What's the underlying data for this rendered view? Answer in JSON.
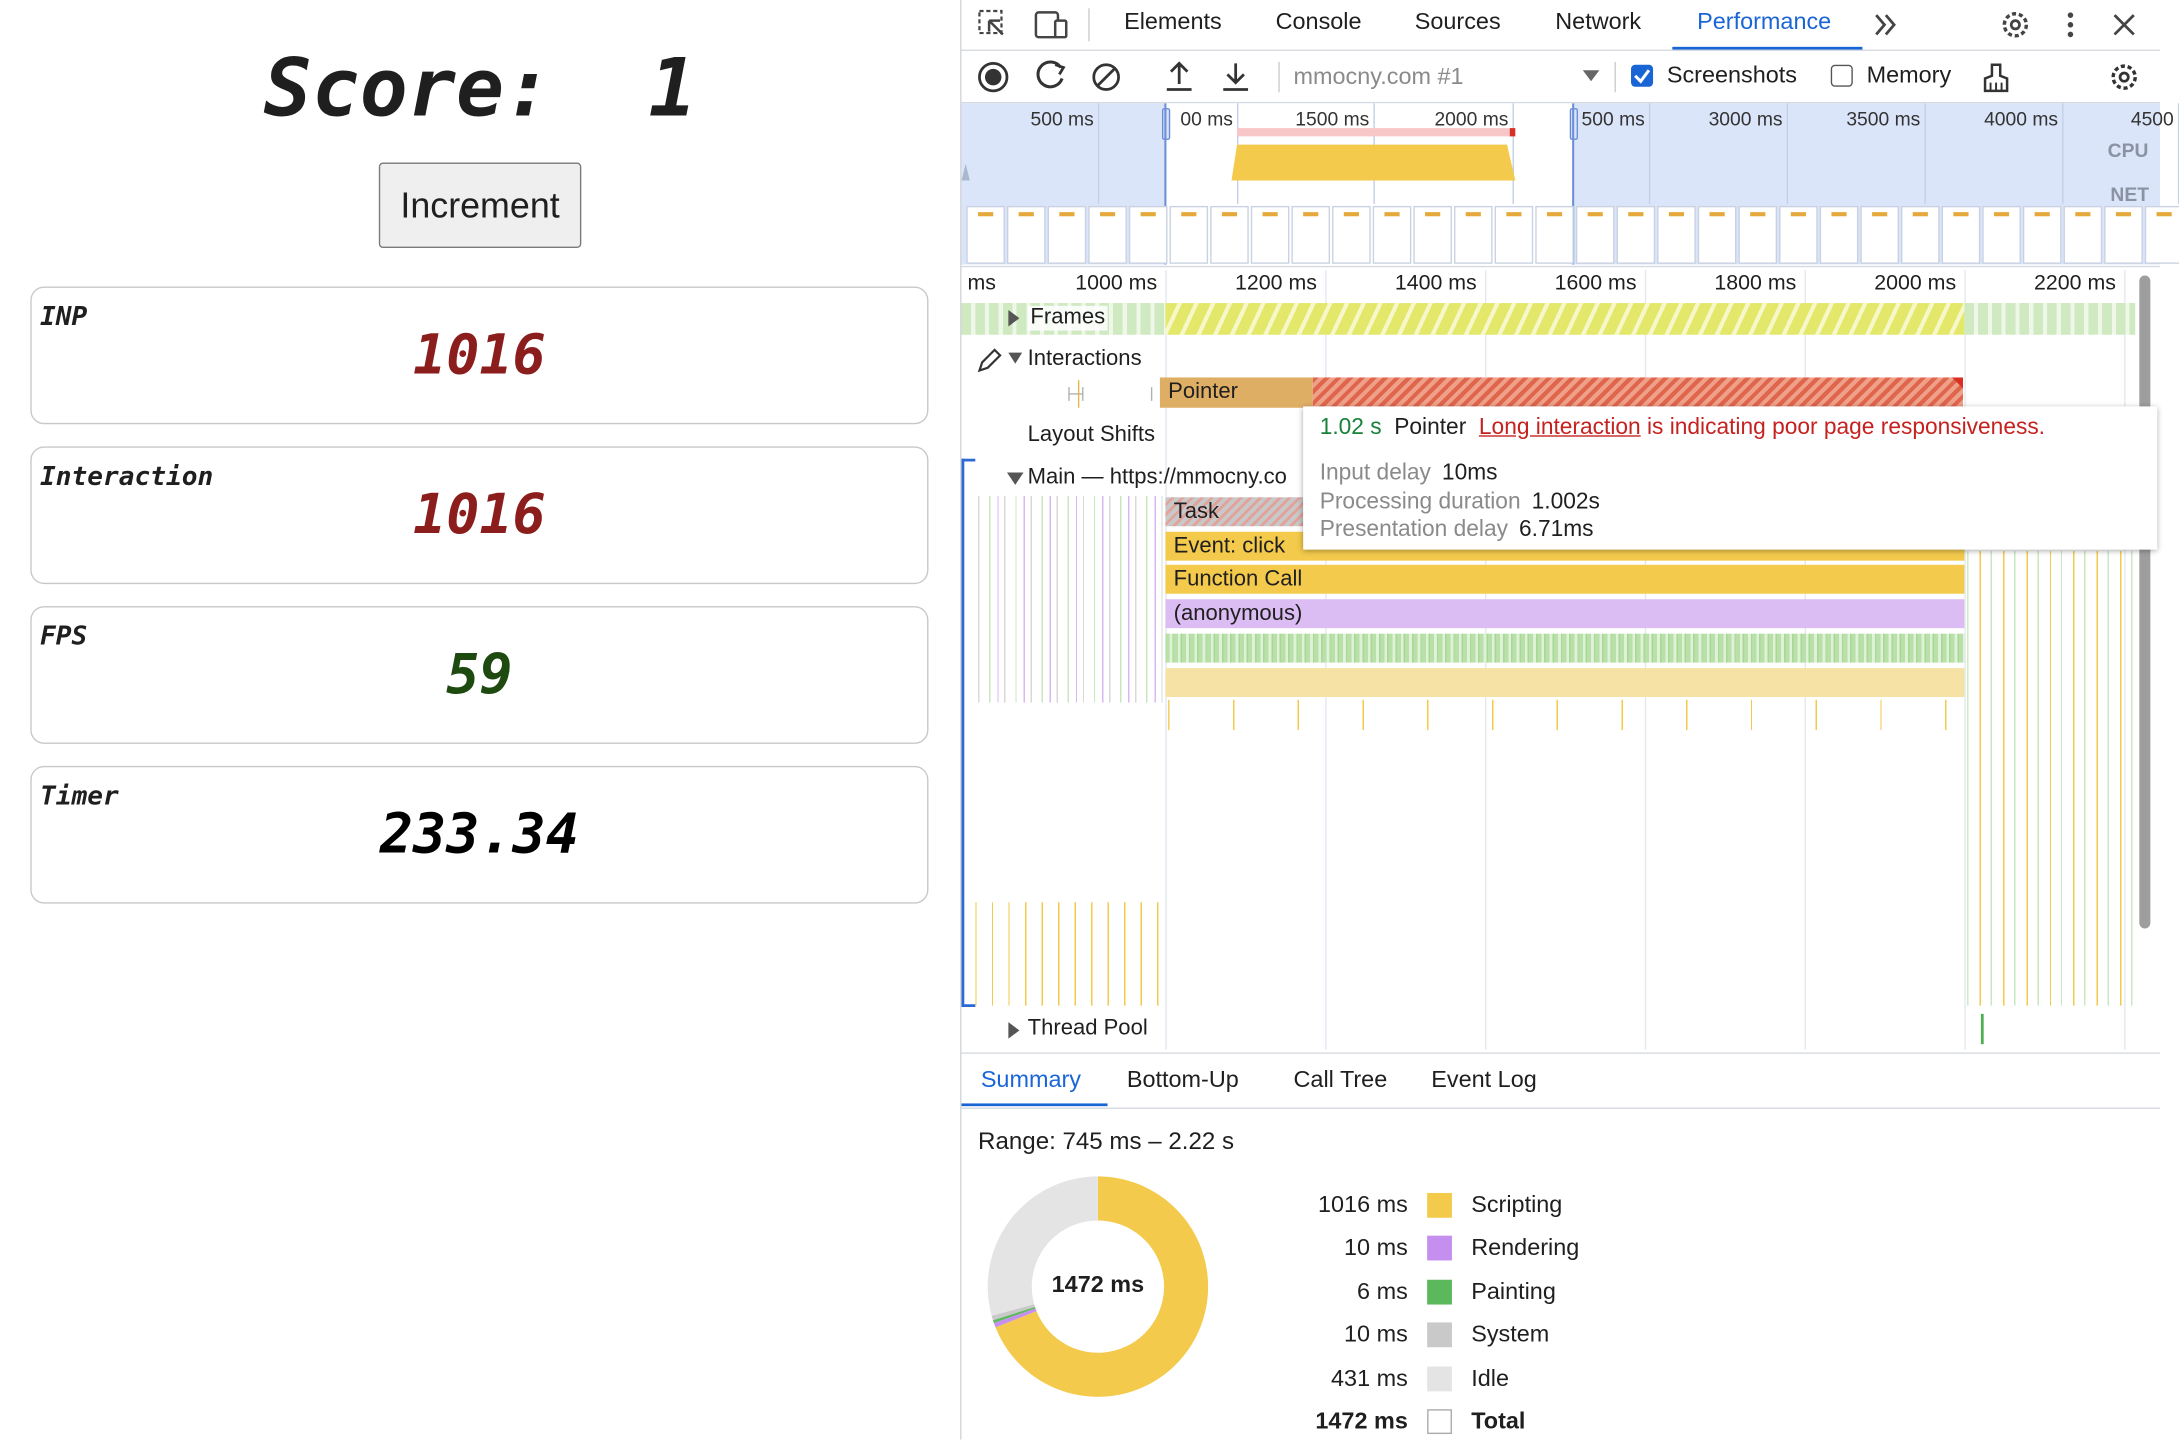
{
  "app": {
    "score_label": "Score:",
    "score": 1,
    "button": "Increment",
    "cards": [
      {
        "label": "INP",
        "value": 1016,
        "color": "#8b1d1d"
      },
      {
        "label": "Interaction",
        "value": 1016,
        "color": "#8b1d1d"
      },
      {
        "label": "FPS",
        "value": 59,
        "color": "#1e4a10"
      },
      {
        "label": "Timer",
        "value": 233.34,
        "color": "#000000"
      }
    ]
  },
  "devtools": {
    "tabs": [
      "Elements",
      "Console",
      "Sources",
      "Network",
      "Performance"
    ],
    "target": "mmocny.com #1",
    "checkboxes": [
      {
        "label": "Screenshots",
        "checked": true
      },
      {
        "label": "Memory",
        "checked": false
      }
    ],
    "overview": {
      "ticks": [
        "500 ms",
        "00 ms",
        "1500 ms",
        "2000 ms",
        "500 ms",
        "3000 ms",
        "3500 ms",
        "4000 ms",
        "4500"
      ],
      "cpu": "CPU",
      "net": "NET"
    },
    "ruler": [
      "ms",
      "1000 ms",
      "1200 ms",
      "1400 ms",
      "1600 ms",
      "1800 ms",
      "2000 ms",
      "2200 ms"
    ],
    "tracks": {
      "frames": "Frames",
      "interactions": "Interactions",
      "layout_shifts": "Layout Shifts",
      "main": "Main — https://mmocny.co",
      "thread_pool": "Thread Pool"
    },
    "pointer": "Pointer",
    "flame": [
      "Task",
      "Event: click",
      "Function Call",
      "(anonymous)"
    ],
    "tooltip": {
      "duration": "1.02 s",
      "type": "Pointer",
      "link": "Long interaction",
      "message": "is indicating poor page responsiveness.",
      "rows": [
        {
          "label": "Input delay",
          "value": "10ms"
        },
        {
          "label": "Processing duration",
          "value": "1.002s"
        },
        {
          "label": "Presentation delay",
          "value": "6.71ms"
        }
      ]
    },
    "panel_tabs": [
      "Summary",
      "Bottom-Up",
      "Call Tree",
      "Event Log"
    ],
    "summary": {
      "range": "Range: 745 ms – 2.22 s",
      "rows": [
        {
          "time": 1016,
          "unit": "ms",
          "name": "Scripting",
          "color": "#f3ca4b"
        },
        {
          "time": 10,
          "unit": "ms",
          "name": "Rendering",
          "color": "#c58ff0"
        },
        {
          "time": 6,
          "unit": "ms",
          "name": "Painting",
          "color": "#5cb85c"
        },
        {
          "time": 10,
          "unit": "ms",
          "name": "System",
          "color": "#c9c9c9"
        },
        {
          "time": 431,
          "unit": "ms",
          "name": "Idle",
          "color": "#e4e4e4"
        }
      ],
      "total": {
        "time": 1472,
        "unit": "ms",
        "name": "Total"
      }
    }
  }
}
